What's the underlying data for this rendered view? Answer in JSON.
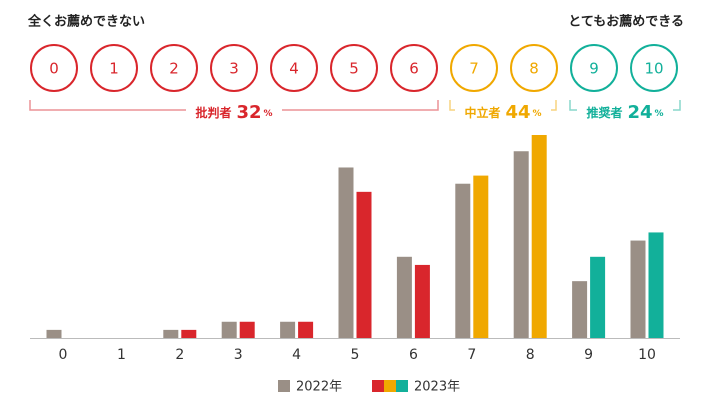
{
  "chart_data": {
    "type": "bar",
    "scale_left_label": "全くお薦めできない",
    "scale_right_label": "とてもお薦めできる",
    "groups": [
      {
        "name": "批判者",
        "value": 32,
        "unit": "%",
        "color": "#d9262c",
        "scores": [
          "0",
          "1",
          "2",
          "3",
          "4",
          "5",
          "6"
        ]
      },
      {
        "name": "中立者",
        "value": 44,
        "unit": "%",
        "color": "#f0a800",
        "scores": [
          "7",
          "8"
        ]
      },
      {
        "name": "推奨者",
        "value": 24,
        "unit": "%",
        "color": "#12b09a",
        "scores": [
          "9",
          "10"
        ]
      }
    ],
    "categories": [
      "0",
      "1",
      "2",
      "3",
      "4",
      "5",
      "6",
      "7",
      "8",
      "9",
      "10"
    ],
    "series": [
      {
        "name": "2022年",
        "color": "#9a8f86",
        "values": [
          1,
          0,
          1,
          2,
          2,
          21,
          10,
          19,
          23,
          7,
          12
        ]
      },
      {
        "name": "2023年",
        "colors": [
          "#d9262c",
          "#d9262c",
          "#d9262c",
          "#d9262c",
          "#d9262c",
          "#d9262c",
          "#d9262c",
          "#f0a800",
          "#f0a800",
          "#12b09a",
          "#12b09a"
        ],
        "values": [
          0,
          0,
          1,
          2,
          2,
          18,
          9,
          20,
          25,
          10,
          13
        ]
      }
    ],
    "ylim": [
      0,
      25
    ]
  }
}
